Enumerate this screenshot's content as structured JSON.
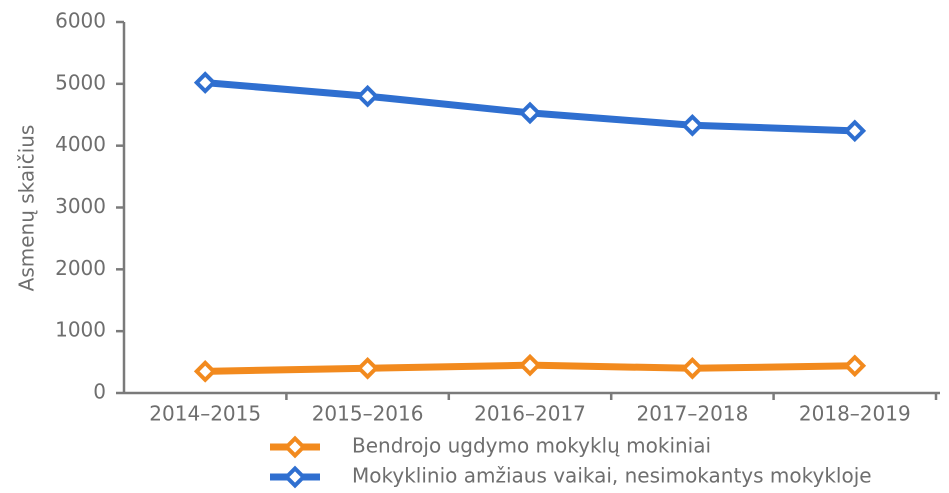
{
  "chart_data": {
    "type": "line",
    "y_label": "Asmenų skaičius",
    "categories": [
      "2014–2015",
      "2015–2016",
      "2016–2017",
      "2017–2018",
      "2018–2019"
    ],
    "series": [
      {
        "name": "Bendrojo ugdymo mokyklų mokiniai",
        "color": "#f28a1e",
        "values": [
          350,
          400,
          450,
          400,
          440
        ]
      },
      {
        "name": "Mokyklinio amžiaus vaikai, nesimokantys mokykloje",
        "color": "#2f6fd0",
        "values": [
          5020,
          4800,
          4530,
          4330,
          4240
        ]
      }
    ],
    "ylim": [
      0,
      6000
    ],
    "yticks": [
      0,
      1000,
      2000,
      3000,
      4000,
      5000,
      6000
    ]
  }
}
